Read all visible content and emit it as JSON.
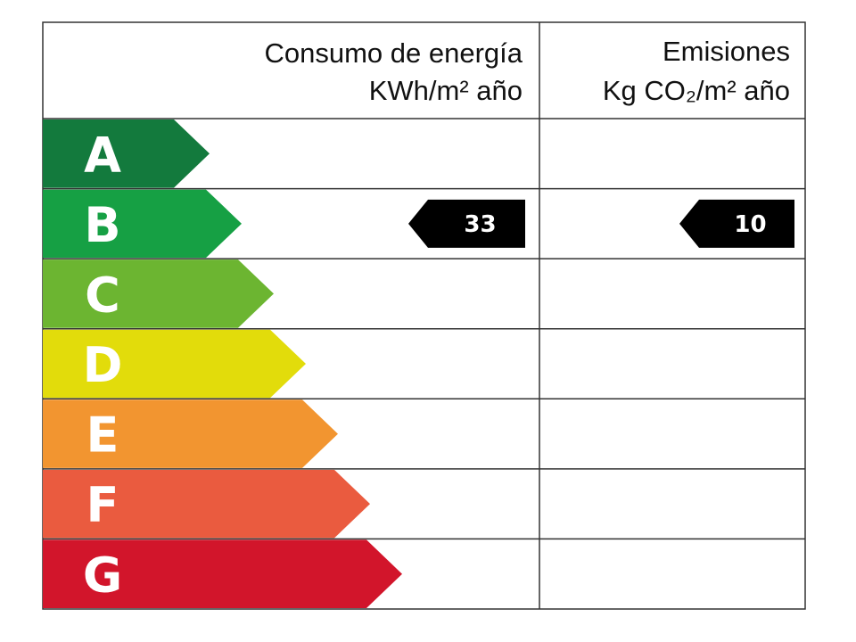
{
  "header": {
    "energy_title": "Consumo de energía",
    "energy_unit": "KWh/m² año",
    "emissions_title": "Emisiones",
    "emissions_unit": "Kg CO₂/m² año"
  },
  "rows": [
    {
      "letter": "A",
      "color": "#137a3d"
    },
    {
      "letter": "B",
      "color": "#16a044"
    },
    {
      "letter": "C",
      "color": "#6cb531"
    },
    {
      "letter": "D",
      "color": "#e2dc0b"
    },
    {
      "letter": "E",
      "color": "#f29530"
    },
    {
      "letter": "F",
      "color": "#ea5b3f"
    },
    {
      "letter": "G",
      "color": "#d2152b"
    }
  ],
  "energy": {
    "value": 33,
    "rating": "B"
  },
  "emissions": {
    "value": 10,
    "rating": "B"
  }
}
